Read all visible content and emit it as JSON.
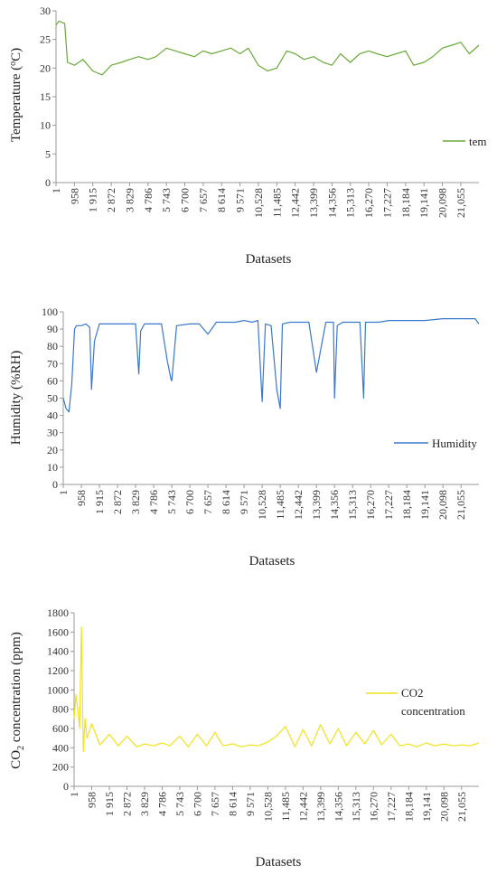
{
  "colors": {
    "temperature": "#6aaa3a",
    "humidity": "#3a78cc",
    "co2": "#f2e21a",
    "axis": "#999999",
    "text": "#222222"
  },
  "x_ticks": [
    "1",
    "958",
    "1 915",
    "2 872",
    "3 829",
    "4 786",
    "5 743",
    "6 700",
    "7 657",
    "8 614",
    "9 571",
    "10,528",
    "11,485",
    "12,442",
    "13,399",
    "14,356",
    "15,313",
    "16,270",
    "17,227",
    "18,184",
    "19,141",
    "20,098",
    "21,055"
  ],
  "chart_data": [
    {
      "type": "line",
      "id": "temperature",
      "xlabel": "Datasets",
      "ylabel_main": "Temperature (",
      "ylabel_super": "o",
      "ylabel_rest": "C)",
      "ylim": [
        0,
        30
      ],
      "yticks": [
        "0",
        "5",
        "10",
        "15",
        "20",
        "25",
        "30"
      ],
      "legend": "tem",
      "series": [
        {
          "name": "tem",
          "x": [
            1,
            150,
            300,
            450,
            600,
            958,
            1400,
            1915,
            2400,
            2872,
            3400,
            3829,
            4300,
            4786,
            5200,
            5743,
            6200,
            6700,
            7200,
            7657,
            8100,
            8614,
            9100,
            9571,
            10000,
            10528,
            11000,
            11485,
            12000,
            12442,
            12900,
            13399,
            13900,
            14356,
            14800,
            15313,
            15800,
            16270,
            16700,
            17227,
            17700,
            18184,
            18600,
            19141,
            19600,
            20098,
            20600,
            21055,
            21500,
            22000
          ],
          "values": [
            27.5,
            28.2,
            28,
            27.8,
            21,
            20.5,
            21.5,
            19.5,
            18.8,
            20.5,
            21,
            21.5,
            22,
            21.5,
            22,
            23.5,
            23,
            22.5,
            22,
            23,
            22.5,
            23,
            23.5,
            22.5,
            23.5,
            20.5,
            19.5,
            20,
            23,
            22.5,
            21.5,
            22,
            21,
            20.5,
            22.5,
            21,
            22.5,
            23,
            22.5,
            22,
            22.5,
            23,
            20.5,
            21,
            22,
            23.5,
            24,
            24.5,
            22.5,
            24
          ]
        }
      ]
    },
    {
      "type": "line",
      "id": "humidity",
      "xlabel": "Datasets",
      "ylabel_main": "Humidity (%RH)",
      "ylim": [
        0,
        100
      ],
      "yticks": [
        "0",
        "10",
        "20",
        "30",
        "40",
        "50",
        "60",
        "70",
        "80",
        "90",
        "100"
      ],
      "legend": "Humidity",
      "series": [
        {
          "name": "Humidity",
          "x": [
            1,
            150,
            300,
            450,
            600,
            700,
            958,
            1200,
            1400,
            1500,
            1650,
            1915,
            2400,
            2600,
            2872,
            3400,
            3829,
            4000,
            4100,
            4300,
            4786,
            5200,
            5500,
            5700,
            5743,
            6000,
            6700,
            7200,
            7657,
            8100,
            8614,
            9100,
            9571,
            10000,
            10300,
            10528,
            10700,
            11000,
            11300,
            11485,
            11600,
            12000,
            12442,
            12800,
            12900,
            13000,
            13399,
            13900,
            14300,
            14356,
            14500,
            14800,
            15313,
            15700,
            15900,
            16000,
            16200,
            16270,
            16700,
            17227,
            18184,
            19141,
            20098,
            21055,
            21800,
            22000
          ],
          "values": [
            50,
            44,
            42,
            58,
            90,
            92,
            92,
            93,
            91,
            55,
            83,
            93,
            93,
            93,
            93,
            93,
            93,
            64,
            89,
            93,
            93,
            93,
            72,
            61,
            60,
            92,
            93,
            93,
            87,
            94,
            94,
            94,
            95,
            94,
            95,
            48,
            93,
            92,
            55,
            44,
            93,
            94,
            94,
            94,
            94,
            94,
            65,
            94,
            94,
            50,
            92,
            94,
            94,
            94,
            50,
            94,
            94,
            94,
            94,
            95,
            95,
            95,
            96,
            96,
            96,
            93
          ]
        }
      ]
    },
    {
      "type": "line",
      "id": "co2",
      "xlabel": "Datasets",
      "ylabel_main": "CO",
      "ylabel_sub": "2",
      "ylabel_rest": " concentration (ppm)",
      "ylim": [
        0,
        1800
      ],
      "yticks": [
        "0",
        "200",
        "400",
        "600",
        "800",
        "1000",
        "1200",
        "1400",
        "1600",
        "1800"
      ],
      "legend_line1": "CO2",
      "legend_line2": "concentration",
      "series": [
        {
          "name": "CO2 concentration",
          "x": [
            1,
            100,
            200,
            300,
            400,
            500,
            600,
            700,
            958,
            1400,
            1915,
            2400,
            2872,
            3400,
            3829,
            4300,
            4786,
            5200,
            5743,
            6200,
            6700,
            7200,
            7657,
            8100,
            8614,
            9100,
            9571,
            10000,
            10528,
            11000,
            11485,
            12000,
            12442,
            12900,
            13399,
            13900,
            14356,
            14800,
            15313,
            15800,
            16270,
            16700,
            17227,
            17700,
            18184,
            18600,
            19141,
            19600,
            20098,
            20600,
            21055,
            21500,
            22000
          ],
          "values": [
            700,
            950,
            800,
            600,
            1650,
            360,
            700,
            500,
            650,
            430,
            540,
            420,
            520,
            410,
            440,
            420,
            450,
            420,
            520,
            410,
            540,
            420,
            560,
            420,
            440,
            410,
            430,
            420,
            460,
            520,
            620,
            410,
            590,
            420,
            640,
            440,
            600,
            420,
            560,
            440,
            580,
            430,
            540,
            420,
            440,
            410,
            450,
            420,
            440,
            420,
            430,
            420,
            450
          ]
        }
      ]
    }
  ]
}
